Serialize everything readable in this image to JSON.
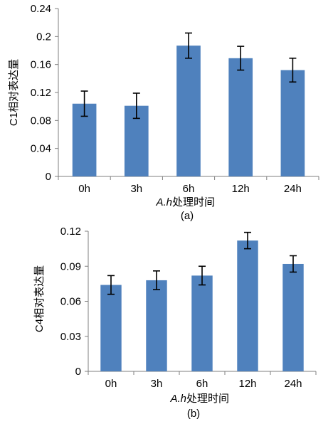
{
  "colors": {
    "bar": "#4f81bd",
    "axis": "#7f7f7f",
    "error": "#000000"
  },
  "chart_data": [
    {
      "type": "bar",
      "categories": [
        "0h",
        "3h",
        "6h",
        "12h",
        "24h"
      ],
      "values": [
        0.104,
        0.101,
        0.187,
        0.169,
        0.152
      ],
      "errors": [
        0.018,
        0.018,
        0.018,
        0.017,
        0.017
      ],
      "ylim": [
        0,
        0.24
      ],
      "yticks": [
        "0",
        "0.04",
        "0.08",
        "0.12",
        "0.16",
        "0.2",
        "0.24"
      ],
      "ylabel": "C1相对表达量",
      "xlabel_italic": "A.h",
      "xlabel_rest": "处理时间",
      "caption": "(a)",
      "grid": false
    },
    {
      "type": "bar",
      "categories": [
        "0h",
        "3h",
        "6h",
        "12h",
        "24h"
      ],
      "values": [
        0.074,
        0.078,
        0.082,
        0.112,
        0.092
      ],
      "errors": [
        0.008,
        0.008,
        0.008,
        0.007,
        0.007
      ],
      "ylim": [
        0,
        0.12
      ],
      "yticks": [
        "0",
        "0.03",
        "0.06",
        "0.09",
        "0.12"
      ],
      "ylabel": "C4相对表达量",
      "xlabel_italic": "A.h",
      "xlabel_rest": "处理时间",
      "caption": "(b)",
      "grid": false
    }
  ]
}
